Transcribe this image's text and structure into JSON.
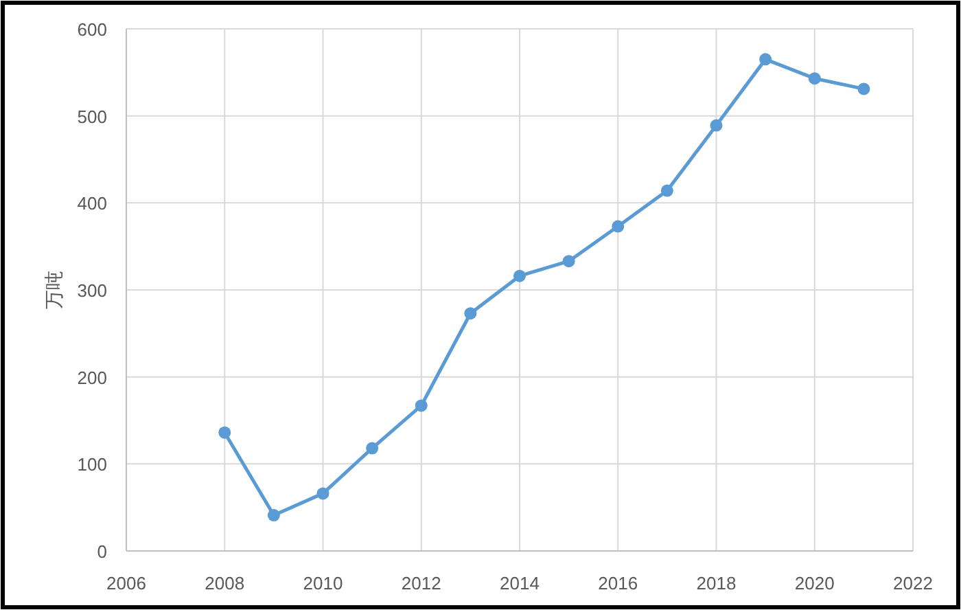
{
  "chart_data": {
    "type": "line",
    "ylabel": "万吨",
    "x": [
      2008,
      2009,
      2010,
      2011,
      2012,
      2013,
      2014,
      2015,
      2016,
      2017,
      2018,
      2019,
      2020,
      2021
    ],
    "series": [
      {
        "color": "#5b9bd5",
        "values": [
          136,
          41,
          66,
          118,
          167,
          273,
          316,
          333,
          373,
          414,
          489,
          565,
          543,
          531
        ]
      }
    ],
    "xlim": [
      2006,
      2022
    ],
    "xticks": [
      2006,
      2008,
      2010,
      2012,
      2014,
      2016,
      2018,
      2020,
      2022
    ],
    "ylim": [
      0,
      600
    ],
    "yticks": [
      0,
      100,
      200,
      300,
      400,
      500,
      600
    ],
    "grid": true,
    "marker": "circle",
    "line_style": "solid"
  }
}
